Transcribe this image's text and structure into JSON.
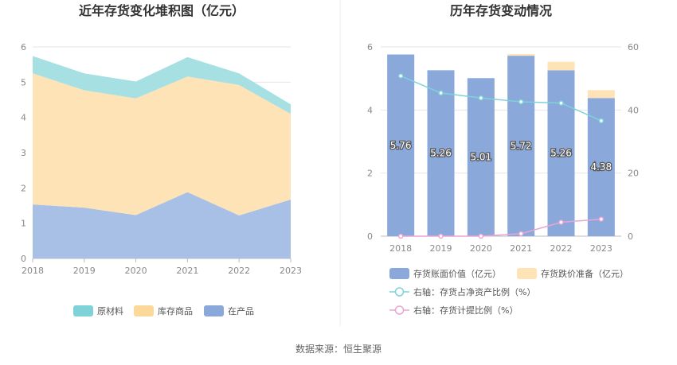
{
  "source": "数据来源：恒生聚源",
  "chart_data": [
    {
      "type": "area",
      "title": "近年存货变化堆积图（亿元）",
      "x": [
        "2018",
        "2019",
        "2020",
        "2021",
        "2022",
        "2023"
      ],
      "ylim": [
        0,
        6
      ],
      "yticks": [
        0,
        1,
        2,
        3,
        4,
        5,
        6
      ],
      "stacked": true,
      "grid": true,
      "legend_position": "bottom",
      "series": [
        {
          "name": "在产品",
          "color": "#a8bfe6",
          "values": [
            1.53,
            1.44,
            1.23,
            1.88,
            1.22,
            1.67
          ]
        },
        {
          "name": "库存商品",
          "color": "#fde3b6",
          "values": [
            3.72,
            3.33,
            3.31,
            3.28,
            3.7,
            2.43
          ]
        },
        {
          "name": "原材料",
          "color": "#a6e0e3",
          "values": [
            0.49,
            0.48,
            0.48,
            0.55,
            0.33,
            0.27
          ]
        }
      ],
      "legend": [
        {
          "name": "原材料",
          "color": "#7fd3d8"
        },
        {
          "name": "库存商品",
          "color": "#fcd89a"
        },
        {
          "name": "在产品",
          "color": "#8aa8da"
        }
      ]
    },
    {
      "type": "bar",
      "title": "历年存货变动情况",
      "categories": [
        "2018",
        "2019",
        "2020",
        "2021",
        "2022",
        "2023"
      ],
      "ylim": [
        0,
        6
      ],
      "yticks": [
        0,
        2,
        4,
        6
      ],
      "y2lim": [
        0,
        60
      ],
      "y2ticks": [
        0,
        20,
        40,
        60
      ],
      "grid": true,
      "legend_position": "bottom",
      "series": [
        {
          "name": "存货账面价值（亿元）",
          "kind": "bar",
          "axis": "left",
          "color": "#8aa8da",
          "values": [
            5.76,
            5.26,
            5.01,
            5.72,
            5.26,
            4.38
          ],
          "labels": [
            "5.76",
            "5.26",
            "5.01",
            "5.72",
            "5.26",
            "4.38"
          ]
        },
        {
          "name": "存货跌价准备（亿元）",
          "kind": "bar",
          "axis": "left",
          "color": "#fde3b6",
          "values": [
            0.0,
            0.0,
            0.0,
            0.05,
            0.27,
            0.25
          ]
        },
        {
          "name": "右轴：存货占净资产比例（%）",
          "kind": "line",
          "axis": "right",
          "color": "#7fd3d8",
          "values": [
            50.8,
            45.4,
            43.8,
            42.6,
            42.2,
            36.6
          ]
        },
        {
          "name": "右轴：存货计提比例（%）",
          "kind": "line",
          "axis": "right",
          "color": "#e8a6d6",
          "values": [
            0.0,
            0.0,
            0.0,
            0.8,
            4.4,
            5.4
          ]
        }
      ]
    }
  ]
}
